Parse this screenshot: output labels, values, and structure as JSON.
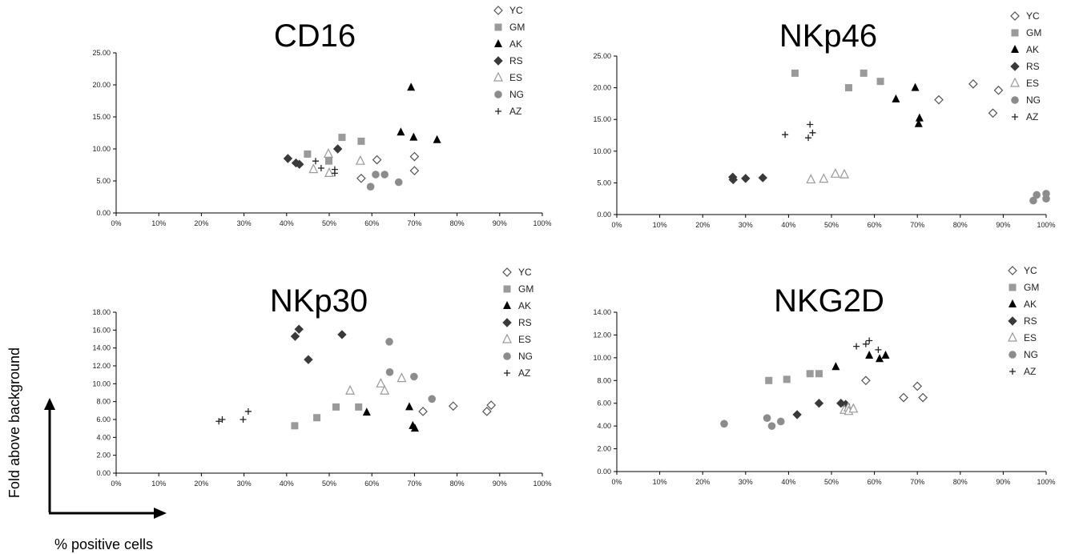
{
  "figure": {
    "y_caption": "Fold above background",
    "x_caption": "% positive cells"
  },
  "styles": {
    "YC": {
      "marker": "diamond-open",
      "color": "#555555"
    },
    "GM": {
      "marker": "square-filled",
      "color": "#9a9a9a"
    },
    "AK": {
      "marker": "triangle-filled",
      "color": "#000000"
    },
    "RS": {
      "marker": "diamond-filled",
      "color": "#3a3a3a"
    },
    "ES": {
      "marker": "triangle-open",
      "color": "#9a9a9a"
    },
    "NG": {
      "marker": "circle-filled",
      "color": "#8c8c8c"
    },
    "AZ": {
      "marker": "plus",
      "color": "#222222"
    }
  },
  "chart_data": [
    {
      "type": "scatter",
      "title": "CD16",
      "xlim": [
        0,
        100
      ],
      "ylim": [
        0,
        25
      ],
      "x_ticks": [
        "0%",
        "10%",
        "20%",
        "30%",
        "40%",
        "50%",
        "60%",
        "70%",
        "80%",
        "90%",
        "100%"
      ],
      "y_ticks": [
        "0.00",
        "5.00",
        "10.00",
        "15.00",
        "20.00",
        "25.00"
      ],
      "legend": [
        "YC",
        "GM",
        "AK",
        "RS",
        "ES",
        "NG",
        "AZ"
      ],
      "series": [
        {
          "name": "YC",
          "points": [
            [
              57.5,
              5.4
            ],
            [
              61.2,
              8.3
            ],
            [
              70.0,
              8.8
            ],
            [
              70.0,
              6.6
            ]
          ]
        },
        {
          "name": "GM",
          "points": [
            [
              44.9,
              9.2
            ],
            [
              49.9,
              8.1
            ],
            [
              53.0,
              11.8
            ],
            [
              57.5,
              11.2
            ]
          ]
        },
        {
          "name": "AK",
          "points": [
            [
              66.8,
              12.6
            ],
            [
              69.2,
              19.6
            ],
            [
              69.8,
              11.8
            ],
            [
              75.3,
              11.4
            ]
          ]
        },
        {
          "name": "RS",
          "points": [
            [
              40.3,
              8.5
            ],
            [
              42.2,
              7.8
            ],
            [
              43.0,
              7.6
            ],
            [
              52.0,
              10.0
            ]
          ]
        },
        {
          "name": "ES",
          "points": [
            [
              46.3,
              6.8
            ],
            [
              49.8,
              9.2
            ],
            [
              50.0,
              6.2
            ],
            [
              57.3,
              8.1
            ]
          ]
        },
        {
          "name": "NG",
          "points": [
            [
              59.7,
              4.1
            ],
            [
              60.9,
              6.0
            ],
            [
              63.0,
              6.0
            ],
            [
              66.3,
              4.8
            ]
          ]
        },
        {
          "name": "AZ",
          "points": [
            [
              46.8,
              8.1
            ],
            [
              48.1,
              7.0
            ],
            [
              51.3,
              6.8
            ],
            [
              51.3,
              6.2
            ]
          ]
        }
      ]
    },
    {
      "type": "scatter",
      "title": "NKp46",
      "xlim": [
        0,
        100
      ],
      "ylim": [
        0,
        25
      ],
      "x_ticks": [
        "0%",
        "10%",
        "20%",
        "30%",
        "40%",
        "50%",
        "60%",
        "70%",
        "80%",
        "90%",
        "100%"
      ],
      "y_ticks": [
        "0.00",
        "5.00",
        "10.00",
        "15.00",
        "20.00",
        "25.00"
      ],
      "legend": [
        "YC",
        "GM",
        "AK",
        "RS",
        "ES",
        "NG",
        "AZ"
      ],
      "series": [
        {
          "name": "YC",
          "points": [
            [
              75.0,
              18.1
            ],
            [
              83.0,
              20.6
            ],
            [
              87.6,
              16.0
            ],
            [
              88.9,
              19.6
            ]
          ]
        },
        {
          "name": "GM",
          "points": [
            [
              41.5,
              22.3
            ],
            [
              54.0,
              20.0
            ],
            [
              57.5,
              22.3
            ],
            [
              61.4,
              21.0
            ]
          ]
        },
        {
          "name": "AK",
          "points": [
            [
              65.0,
              18.2
            ],
            [
              69.5,
              20.0
            ],
            [
              70.3,
              14.3
            ],
            [
              70.5,
              15.2
            ]
          ]
        },
        {
          "name": "RS",
          "points": [
            [
              27.0,
              5.9
            ],
            [
              27.1,
              5.5
            ],
            [
              30.0,
              5.7
            ],
            [
              34.0,
              5.8
            ]
          ]
        },
        {
          "name": "ES",
          "points": [
            [
              45.2,
              5.5
            ],
            [
              48.2,
              5.6
            ],
            [
              50.9,
              6.4
            ],
            [
              53.0,
              6.3
            ]
          ]
        },
        {
          "name": "NG",
          "points": [
            [
              97.0,
              2.2
            ],
            [
              97.8,
              3.1
            ],
            [
              100.0,
              2.5
            ],
            [
              100.0,
              3.3
            ]
          ]
        },
        {
          "name": "AZ",
          "points": [
            [
              39.2,
              12.6
            ],
            [
              44.6,
              12.1
            ],
            [
              45.0,
              14.2
            ],
            [
              45.6,
              12.9
            ]
          ]
        }
      ]
    },
    {
      "type": "scatter",
      "title": "NKp30",
      "xlim": [
        0,
        100
      ],
      "ylim": [
        0,
        18
      ],
      "x_ticks": [
        "0%",
        "10%",
        "20%",
        "30%",
        "40%",
        "50%",
        "60%",
        "70%",
        "80%",
        "90%",
        "100%"
      ],
      "y_ticks": [
        "0.00",
        "2.00",
        "4.00",
        "6.00",
        "8.00",
        "10.00",
        "12.00",
        "14.00",
        "16.00",
        "18.00"
      ],
      "legend": [
        "YC",
        "GM",
        "AK",
        "RS",
        "ES",
        "NG",
        "AZ"
      ],
      "series": [
        {
          "name": "YC",
          "points": [
            [
              72.0,
              6.9
            ],
            [
              79.1,
              7.5
            ],
            [
              87.0,
              6.9
            ],
            [
              88.0,
              7.6
            ]
          ]
        },
        {
          "name": "GM",
          "points": [
            [
              41.9,
              5.3
            ],
            [
              47.1,
              6.2
            ],
            [
              51.6,
              7.4
            ],
            [
              56.9,
              7.4
            ]
          ]
        },
        {
          "name": "AK",
          "points": [
            [
              58.8,
              6.8
            ],
            [
              68.8,
              7.4
            ],
            [
              69.6,
              5.3
            ],
            [
              70.1,
              5.0
            ]
          ]
        },
        {
          "name": "RS",
          "points": [
            [
              42.0,
              15.3
            ],
            [
              42.9,
              16.1
            ],
            [
              45.1,
              12.7
            ],
            [
              53.0,
              15.5
            ]
          ]
        },
        {
          "name": "ES",
          "points": [
            [
              54.9,
              9.2
            ],
            [
              62.1,
              10.0
            ],
            [
              63.0,
              9.2
            ],
            [
              67.0,
              10.6
            ]
          ]
        },
        {
          "name": "NG",
          "points": [
            [
              64.1,
              14.7
            ],
            [
              64.2,
              11.3
            ],
            [
              69.9,
              10.8
            ],
            [
              74.1,
              8.3
            ]
          ]
        },
        {
          "name": "AZ",
          "points": [
            [
              24.1,
              5.8
            ],
            [
              24.9,
              6.0
            ],
            [
              29.8,
              6.0
            ],
            [
              31.0,
              6.9
            ]
          ]
        }
      ]
    },
    {
      "type": "scatter",
      "title": "NKG2D",
      "xlim": [
        0,
        100
      ],
      "ylim": [
        0,
        14
      ],
      "x_ticks": [
        "0%",
        "10%",
        "20%",
        "30%",
        "40%",
        "50%",
        "60%",
        "70%",
        "80%",
        "90%",
        "100%"
      ],
      "y_ticks": [
        "0.00",
        "2.00",
        "4.00",
        "6.00",
        "8.00",
        "10.00",
        "12.00",
        "14.00"
      ],
      "legend": [
        "YC",
        "GM",
        "AK",
        "RS",
        "ES",
        "NG",
        "AZ"
      ],
      "series": [
        {
          "name": "YC",
          "points": [
            [
              58.0,
              8.0
            ],
            [
              66.8,
              6.5
            ],
            [
              70.0,
              7.5
            ],
            [
              71.3,
              6.5
            ]
          ]
        },
        {
          "name": "GM",
          "points": [
            [
              35.4,
              8.0
            ],
            [
              39.6,
              8.1
            ],
            [
              45.0,
              8.6
            ],
            [
              47.1,
              8.6
            ]
          ]
        },
        {
          "name": "AK",
          "points": [
            [
              51.0,
              9.2
            ],
            [
              58.8,
              10.2
            ],
            [
              61.2,
              9.9
            ],
            [
              62.6,
              10.2
            ]
          ]
        },
        {
          "name": "RS",
          "points": [
            [
              42.0,
              5.0
            ],
            [
              47.1,
              6.0
            ],
            [
              52.2,
              6.0
            ],
            [
              53.3,
              5.9
            ]
          ]
        },
        {
          "name": "ES",
          "points": [
            [
              53.0,
              5.4
            ],
            [
              53.9,
              5.6
            ],
            [
              54.0,
              5.3
            ],
            [
              55.1,
              5.5
            ]
          ]
        },
        {
          "name": "NG",
          "points": [
            [
              25.0,
              4.2
            ],
            [
              35.0,
              4.7
            ],
            [
              36.1,
              4.0
            ],
            [
              38.2,
              4.4
            ]
          ]
        },
        {
          "name": "AZ",
          "points": [
            [
              55.8,
              11.0
            ],
            [
              58.0,
              11.2
            ],
            [
              58.8,
              11.5
            ],
            [
              60.9,
              10.7
            ]
          ]
        }
      ]
    }
  ]
}
